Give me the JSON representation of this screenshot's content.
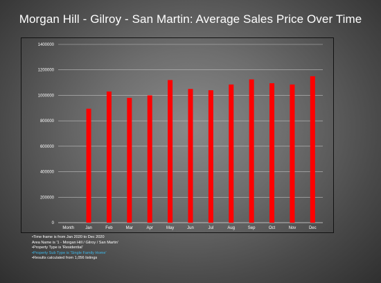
{
  "title": "Morgan Hill - Gilroy - San Martin: Average Sales Price Over Time",
  "chart_data": {
    "type": "bar",
    "title": "Morgan Hill - Gilroy - San Martin: Average Sales Price Over Time",
    "categories": [
      "Month",
      "Jan",
      "Feb",
      "Mar",
      "Apr",
      "May",
      "Jun",
      "Jul",
      "Aug",
      "Sep",
      "Oct",
      "Nov",
      "Dec"
    ],
    "values": [
      null,
      895000,
      1030000,
      980000,
      1000000,
      1120000,
      1050000,
      1040000,
      1085000,
      1125000,
      1095000,
      1085000,
      1150000
    ],
    "ylim": [
      0,
      1400000
    ],
    "yticks": [
      "0",
      "200000",
      "400000",
      "600000",
      "800000",
      "1000000",
      "1200000",
      "1400000"
    ],
    "ytick_values": [
      0,
      200000,
      400000,
      600000,
      800000,
      1000000,
      1200000,
      1400000
    ],
    "grid": true,
    "bar_color": "#ff0000"
  },
  "notes": [
    {
      "text": "•Time frame is from Jan 2020 to Dec 2020",
      "highlight": false
    },
    {
      "text": "Area Name is '1 - Morgan Hill / Gilroy / San Martin'",
      "highlight": false
    },
    {
      "text": "•Property Type is 'Residential'",
      "highlight": false
    },
    {
      "text": "•Property Sub Type is 'Single Family Home'",
      "highlight": true
    },
    {
      "text": "•Results calculated from 1,056 listings",
      "highlight": false
    }
  ]
}
